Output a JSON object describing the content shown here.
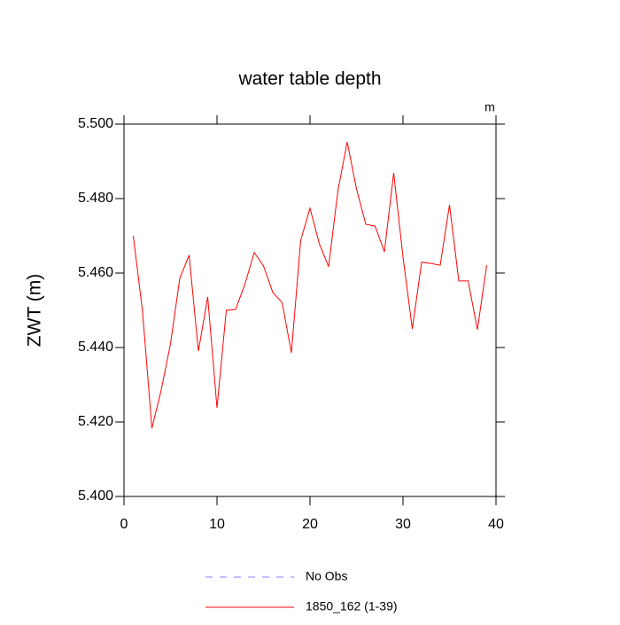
{
  "chart_data": {
    "type": "line",
    "title": "water table depth",
    "y_label": "ZWT  (m)",
    "units": "m",
    "x": [
      1,
      2,
      3,
      4,
      5,
      6,
      7,
      8,
      9,
      10,
      11,
      12,
      13,
      14,
      15,
      16,
      17,
      18,
      19,
      20,
      21,
      22,
      23,
      24,
      25,
      26,
      27,
      28,
      29,
      30,
      31,
      32,
      33,
      34,
      35,
      36,
      37,
      38,
      39
    ],
    "series": [
      {
        "name": "1850_162 (1-39)",
        "color": "#ff0000",
        "values": [
          5.47,
          5.4495,
          5.4183,
          5.4286,
          5.441,
          5.4586,
          5.4648,
          5.439,
          5.4536,
          5.4238,
          5.45,
          5.4502,
          5.457,
          5.4655,
          5.4619,
          5.4548,
          5.4521,
          5.4386,
          5.4688,
          5.4774,
          5.4679,
          5.4617,
          5.4821,
          5.4952,
          5.4826,
          5.4731,
          5.4726,
          5.4657,
          5.4869,
          5.4643,
          5.445,
          5.4629,
          5.4626,
          5.4621,
          5.4783,
          5.4579,
          5.4579,
          5.4448,
          5.4621
        ]
      }
    ],
    "legend": [
      {
        "name": "No Obs",
        "color": "#8080ff",
        "dashed": true
      }
    ],
    "xlim": [
      0,
      40
    ],
    "xticks": [
      0,
      10,
      20,
      30,
      40
    ],
    "ylim": [
      5.4,
      5.5
    ],
    "yticks": [
      {
        "value": 5.4,
        "label": "5.400"
      },
      {
        "value": 5.42,
        "label": "5.420"
      },
      {
        "value": 5.44,
        "label": "5.440"
      },
      {
        "value": 5.46,
        "label": "5.460"
      },
      {
        "value": 5.48,
        "label": "5.480"
      },
      {
        "value": 5.5,
        "label": "5.500"
      }
    ]
  }
}
